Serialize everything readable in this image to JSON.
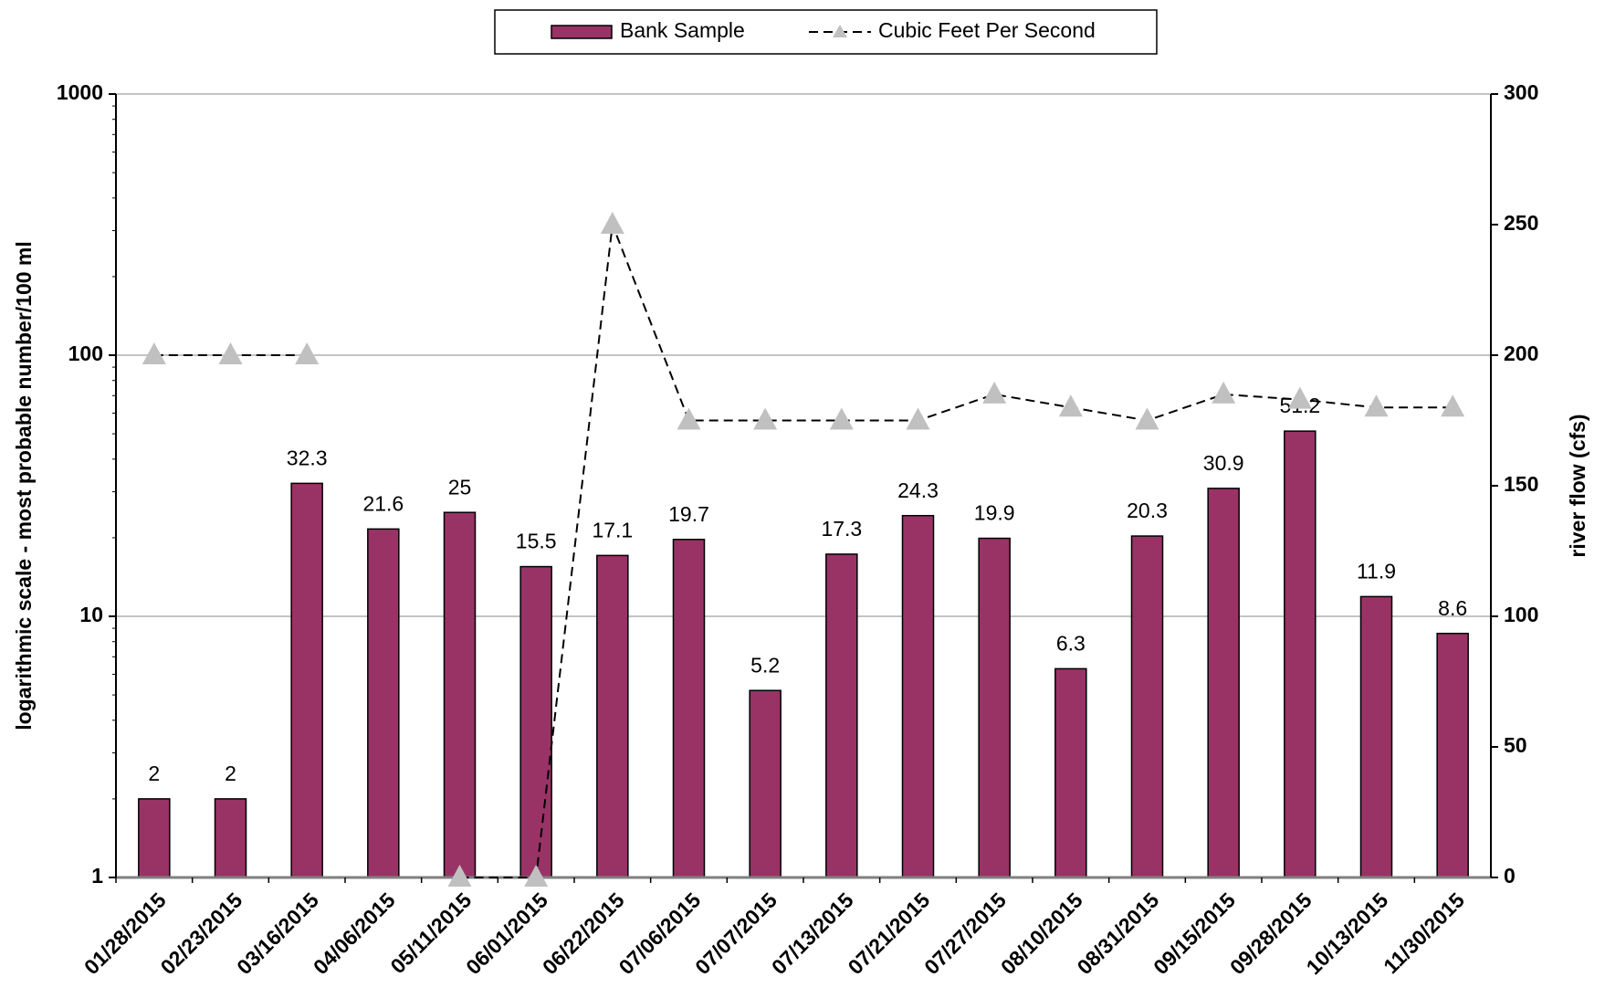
{
  "chart_data": {
    "type": "bar-line",
    "categories": [
      "01/28/2015",
      "02/23/2015",
      "03/16/2015",
      "04/06/2015",
      "05/11/2015",
      "06/01/2015",
      "06/22/2015",
      "07/06/2015",
      "07/07/2015",
      "07/13/2015",
      "07/21/2015",
      "07/27/2015",
      "08/10/2015",
      "08/31/2015",
      "09/15/2015",
      "09/28/2015",
      "10/13/2015",
      "11/30/2015"
    ],
    "series": [
      {
        "name": "Bank Sample",
        "type": "bar",
        "color": "#993366",
        "values": [
          2,
          2,
          32.3,
          21.6,
          25,
          15.5,
          17.1,
          19.7,
          5.2,
          17.3,
          24.3,
          19.9,
          6.3,
          20.3,
          30.9,
          51.2,
          11.9,
          8.6
        ]
      },
      {
        "name": "Cubic Feet Per Second",
        "type": "line",
        "axis": "y2",
        "color": "#000000",
        "marker_color": "#c0c0c0",
        "values": [
          200,
          200,
          200,
          null,
          0,
          0,
          250,
          175,
          175,
          175,
          175,
          185,
          180,
          175,
          185,
          183,
          180,
          180
        ]
      }
    ],
    "y_label": "logarithmic scale - most probable number/100 ml",
    "y2_label": "river flow (cfs)",
    "yscale": "log",
    "ylim": [
      1,
      1000
    ],
    "yticks": [
      1,
      10,
      100,
      1000
    ],
    "y2lim": [
      0,
      300
    ],
    "y2ticks": [
      0,
      50,
      100,
      150,
      200,
      250,
      300
    ],
    "grid": true,
    "legend": "top"
  }
}
